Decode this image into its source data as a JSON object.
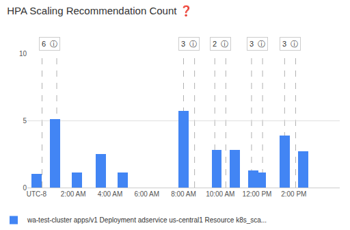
{
  "chart_data": {
    "type": "bar",
    "title": "HPA Scaling Recommendation Count ❓",
    "x": [
      0.0,
      1.0,
      2.2,
      3.5,
      4.7,
      8.0,
      9.8,
      10.8,
      11.8,
      12.2,
      13.5,
      14.5
    ],
    "series": [
      {
        "name": "wa-test-cluster apps/v1 Deployment adservice us-central1 Resource k8s_sca...",
        "color": "#4285F4",
        "values": [
          1.0,
          5.1,
          1.1,
          2.5,
          1.1,
          5.7,
          2.8,
          2.8,
          1.3,
          1.1,
          3.9,
          2.7
        ]
      }
    ],
    "xlim": [
      -0.5,
      16.5
    ],
    "xticks": [
      {
        "value": 0,
        "label": "UTC-8"
      },
      {
        "value": 2,
        "label": "2:00 AM"
      },
      {
        "value": 4,
        "label": "4:00 AM"
      },
      {
        "value": 6,
        "label": "6:00 AM"
      },
      {
        "value": 8,
        "label": "8:00 AM"
      },
      {
        "value": 10,
        "label": "10:00 AM"
      },
      {
        "value": 12,
        "label": "12:00 PM"
      },
      {
        "value": 14,
        "label": "2:00 PM"
      }
    ],
    "ylim": [
      0,
      10
    ],
    "yticks": [
      0,
      5,
      10
    ],
    "grid": true,
    "legend": "bottom left",
    "annotations": [
      {
        "text": "6  ⓘ",
        "x": 0.7,
        "lines": [
          0.3,
          1.1
        ]
      },
      {
        "text": "3  ⓘ",
        "x": 8.3,
        "lines": [
          8.0,
          8.6
        ]
      },
      {
        "text": "2  ⓘ",
        "x": 10.0,
        "lines": [
          9.7,
          10.3
        ]
      },
      {
        "text": "3  ⓘ",
        "x": 12.0,
        "lines": [
          11.7,
          12.3
        ]
      },
      {
        "text": "3  ⓘ",
        "x": 13.8,
        "lines": [
          13.5,
          14.1
        ]
      }
    ]
  }
}
